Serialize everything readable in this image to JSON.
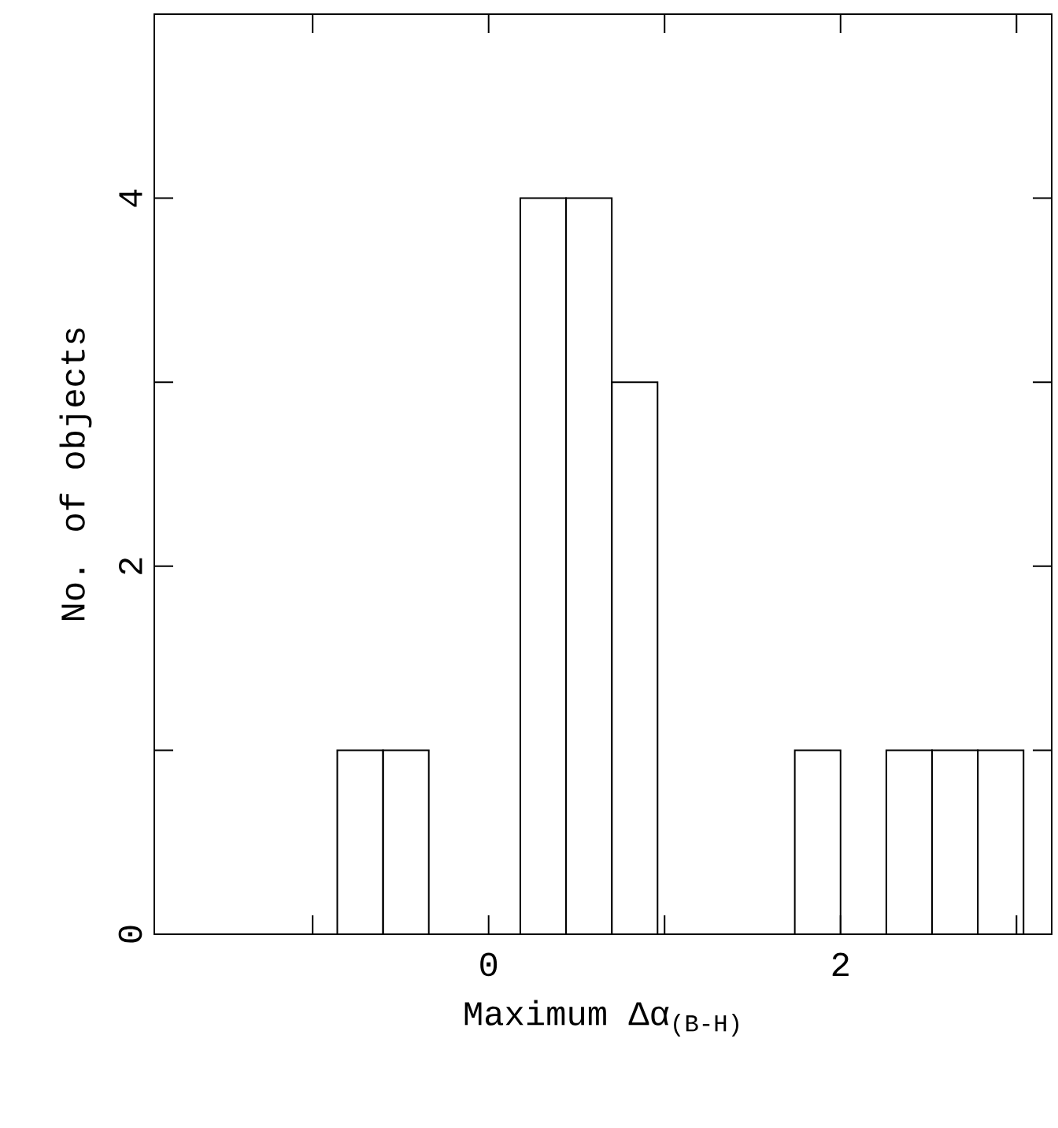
{
  "chart_data": {
    "type": "histogram",
    "xlabel": "Maximum Δα$_{(B-H)}$",
    "ylabel": "No. of objects",
    "bins": [
      -0.86,
      -0.6,
      -0.34,
      -0.08,
      0.18,
      0.44,
      0.7,
      0.96,
      1.22,
      1.48,
      1.74,
      2.0,
      2.26,
      2.52,
      2.78,
      3.04
    ],
    "values": [
      1,
      1,
      0,
      0,
      4,
      4,
      3,
      0,
      0,
      0,
      1,
      0,
      1,
      1,
      1
    ],
    "color": "#000000",
    "xlim": [
      -1.9,
      3.2
    ],
    "ylim": [
      0,
      5
    ],
    "xticks": [
      {
        "value": -1,
        "label": null
      },
      0,
      {
        "value": 1,
        "label": null
      },
      2,
      {
        "value": 3,
        "label": null
      }
    ],
    "yticks": [
      0,
      {
        "value": 1,
        "label": null
      },
      2,
      {
        "value": 3,
        "label": null
      },
      4
    ],
    "grid": false
  }
}
